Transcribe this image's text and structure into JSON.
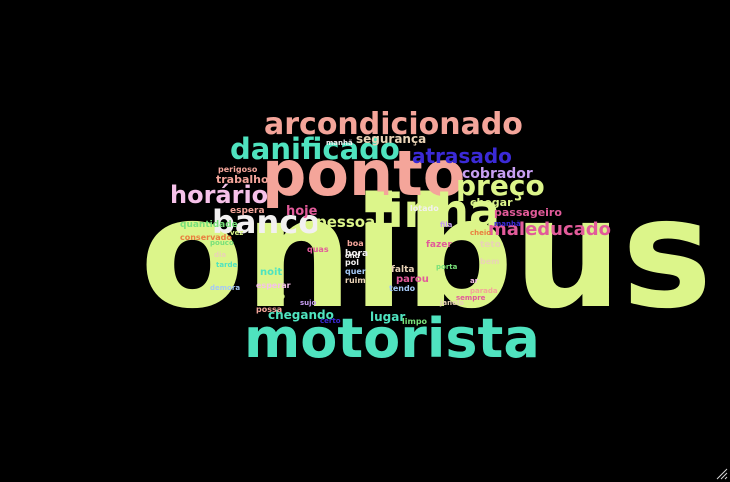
{
  "words": [
    {
      "text": "onibus",
      "color": "#dcf58a"
    },
    {
      "text": "ponto",
      "color": "#f4a59a"
    },
    {
      "text": "motorista",
      "color": "#4fe3bf"
    },
    {
      "text": "linha",
      "color": "#dcf58a"
    },
    {
      "text": "arcondicionado",
      "color": "#f4a59a"
    },
    {
      "text": "danificado",
      "color": "#4fe3bf"
    },
    {
      "text": "banco",
      "color": "#f2f0f0"
    },
    {
      "text": "preço",
      "color": "#dcf58a"
    },
    {
      "text": "horário",
      "color": "#f6c1e9"
    },
    {
      "text": "atrasado",
      "color": "#3b2ad6"
    },
    {
      "text": "maleducado",
      "color": "#e25b9a"
    },
    {
      "text": "cobrador",
      "color": "#c79ef2"
    },
    {
      "text": "pessoa",
      "color": "#dcf58a"
    },
    {
      "text": "segurança",
      "color": "#e9d3b6"
    },
    {
      "text": "trabalho",
      "color": "#f4a59a"
    },
    {
      "text": "chegar",
      "color": "#dcf58a"
    },
    {
      "text": "hoje",
      "color": "#e25b9a"
    },
    {
      "text": "passageiro",
      "color": "#e25b9a"
    },
    {
      "text": "chegando",
      "color": "#4fe3bf"
    },
    {
      "text": "lugar",
      "color": "#4fe3bf"
    },
    {
      "text": "espera",
      "color": "#f4a59a"
    },
    {
      "text": "perigoso",
      "color": "#f4a59a"
    },
    {
      "text": "quantidade",
      "color": "#78e07a"
    },
    {
      "text": "conservado",
      "color": "#e97f3f"
    },
    {
      "text": "esperar",
      "color": "#f6c1e9"
    },
    {
      "text": "moço",
      "color": "#dcf58a"
    },
    {
      "text": "noit",
      "color": "#4fe3bf"
    },
    {
      "text": "lotado",
      "color": "#f2f0f0"
    },
    {
      "text": "fazer",
      "color": "#e25b9a"
    },
    {
      "text": "teto",
      "color": "#e9d3b6"
    },
    {
      "text": "hora",
      "color": "#f2f0f0"
    },
    {
      "text": "pol",
      "color": "#f2f0f0"
    },
    {
      "text": "quer",
      "color": "#a4c8f5"
    },
    {
      "text": "falta",
      "color": "#e9d3b6"
    },
    {
      "text": "parou",
      "color": "#e25b9a"
    },
    {
      "text": "tendo",
      "color": "#a4c8f5"
    },
    {
      "text": "ruim",
      "color": "#e9d3b6"
    },
    {
      "text": "bem",
      "color": "#e9d3b6"
    },
    {
      "text": "boa",
      "color": "#f4a59a"
    },
    {
      "text": "quas",
      "color": "#e25b9a"
    },
    {
      "text": "limpo",
      "color": "#78e07a"
    },
    {
      "text": "certo",
      "color": "#3b2ad6"
    },
    {
      "text": "possa",
      "color": "#f4a59a"
    },
    {
      "text": "manhã",
      "color": "#f2f0f0"
    },
    {
      "text": "manhã",
      "color": "#3b2ad6"
    },
    {
      "text": "ond",
      "color": "#f2f0f0"
    },
    {
      "text": "pouco",
      "color": "#78e07a"
    },
    {
      "text": "dia",
      "color": "#e9d3b6"
    },
    {
      "text": "fila",
      "color": "#c79ef2"
    },
    {
      "text": "tarde",
      "color": "#4fe3bf"
    },
    {
      "text": "parada",
      "color": "#f4a59a"
    },
    {
      "text": "vez",
      "color": "#dcf58a"
    },
    {
      "text": "sempre",
      "color": "#e25b9a"
    },
    {
      "text": "demora",
      "color": "#a4c8f5"
    },
    {
      "text": "cheio",
      "color": "#e97f3f"
    },
    {
      "text": "porta",
      "color": "#78e07a"
    },
    {
      "text": "ar",
      "color": "#f6c1e9"
    },
    {
      "text": "sujo",
      "color": "#c79ef2"
    },
    {
      "text": "janela",
      "color": "#e9d3b6"
    }
  ]
}
